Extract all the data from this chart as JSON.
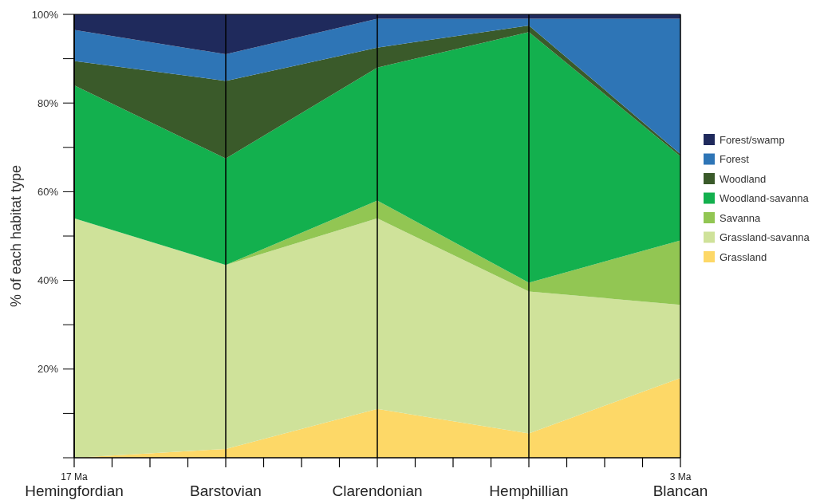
{
  "chart_data": {
    "type": "area",
    "stacked": true,
    "ylabel": "% of each habitat type",
    "categories": [
      "Hemingfordian",
      "Barstovian",
      "Clarendonian",
      "Hemphillian",
      "Blancan"
    ],
    "annotations": [
      "17 Ma",
      "3 Ma"
    ],
    "ylim": [
      0,
      100
    ],
    "yticks": [
      {
        "value": 0,
        "label": null
      },
      {
        "value": 10,
        "label": null
      },
      {
        "value": 20,
        "label": "20%"
      },
      {
        "value": 30,
        "label": null
      },
      {
        "value": 40,
        "label": "40%"
      },
      {
        "value": 50,
        "label": null
      },
      {
        "value": 60,
        "label": "60%"
      },
      {
        "value": 70,
        "label": null
      },
      {
        "value": 80,
        "label": "80%"
      },
      {
        "value": 90,
        "label": null
      },
      {
        "value": 100,
        "label": "100%"
      }
    ],
    "series": [
      {
        "name": "Grassland",
        "color": "#fdd867",
        "values": [
          0,
          2,
          11,
          5.5,
          18
        ]
      },
      {
        "name": "Grassland-savanna",
        "color": "#cfe29a",
        "values": [
          54,
          41.5,
          43,
          32,
          16.5
        ]
      },
      {
        "name": "Savanna",
        "color": "#92c653",
        "values": [
          0,
          0,
          4,
          2,
          14.5
        ]
      },
      {
        "name": "Woodland-savanna",
        "color": "#13b04e",
        "values": [
          30,
          24,
          30,
          56.5,
          19
        ]
      },
      {
        "name": "Woodland",
        "color": "#3a5a2a",
        "values": [
          5.5,
          17.5,
          4.5,
          1.5,
          0.5
        ]
      },
      {
        "name": "Forest",
        "color": "#2e75b6",
        "values": [
          7,
          6,
          6.5,
          1.5,
          30.5
        ]
      },
      {
        "name": "Forest/swamp",
        "color": "#1f2a5c",
        "values": [
          3.5,
          9,
          1,
          1,
          1
        ]
      }
    ],
    "grid": "x",
    "legend": "right"
  }
}
